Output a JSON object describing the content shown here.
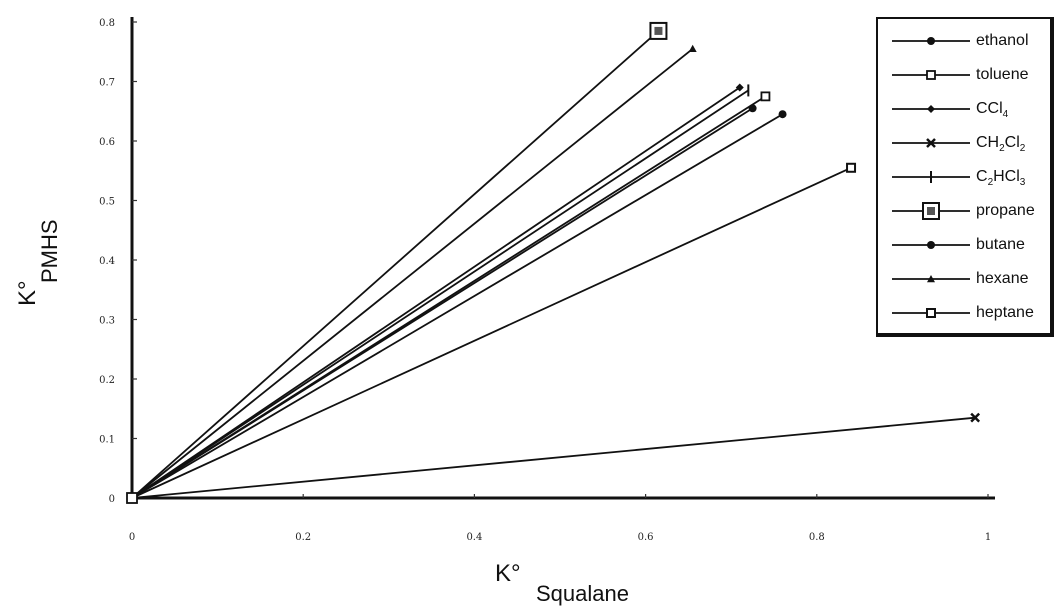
{
  "chart_data": {
    "type": "line",
    "xlabel_main": "K°",
    "xlabel_sub": "Squalane",
    "ylabel_main": "K°",
    "ylabel_sub": "PMHS",
    "xlim": [
      0,
      1
    ],
    "ylim": [
      0,
      0.8
    ],
    "x_ticks": [
      "0",
      "0.2",
      "0.4",
      "0.6",
      "0.8",
      "1"
    ],
    "y_ticks": [
      "0",
      "0.1",
      "0.2",
      "0.3",
      "0.4",
      "0.5",
      "0.6",
      "0.7",
      "0.8"
    ],
    "legend_position": "top-right",
    "series": [
      {
        "name": "ethanol",
        "label_main": "ethanol",
        "marker": "circle",
        "x": [
          0,
          0.725
        ],
        "y": [
          0,
          0.655
        ]
      },
      {
        "name": "toluene",
        "label_main": "toluene",
        "marker": "open-square",
        "x": [
          0,
          0.74
        ],
        "y": [
          0,
          0.675
        ]
      },
      {
        "name": "CCl4",
        "label_main": "CCl",
        "label_sub": "4",
        "marker": "diamond",
        "x": [
          0,
          0.71
        ],
        "y": [
          0,
          0.69
        ]
      },
      {
        "name": "CH2Cl2",
        "label_parts": [
          [
            "CH",
            ""
          ],
          [
            "2",
            "sub"
          ],
          [
            "Cl",
            ""
          ],
          [
            "2",
            "sub"
          ]
        ],
        "marker": "x",
        "x": [
          0,
          0.985
        ],
        "y": [
          0,
          0.135
        ]
      },
      {
        "name": "C2HCl3",
        "label_parts": [
          [
            "C",
            ""
          ],
          [
            "2",
            "sub"
          ],
          [
            "HCl",
            ""
          ],
          [
            "3",
            "sub"
          ]
        ],
        "marker": "plus",
        "x": [
          0,
          0.72
        ],
        "y": [
          0,
          0.685
        ]
      },
      {
        "name": "propane",
        "label_main": "propane",
        "marker": "boxed-square",
        "x": [
          0,
          0.615
        ],
        "y": [
          0,
          0.785
        ]
      },
      {
        "name": "butane",
        "label_main": "butane",
        "marker": "circle",
        "x": [
          0,
          0.76
        ],
        "y": [
          0,
          0.645
        ]
      },
      {
        "name": "hexane",
        "label_main": "hexane",
        "marker": "triangle",
        "x": [
          0,
          0.655
        ],
        "y": [
          0,
          0.755
        ]
      },
      {
        "name": "heptane",
        "label_main": "heptane",
        "marker": "small-square",
        "x": [
          0,
          0.84
        ],
        "y": [
          0,
          0.555
        ]
      }
    ]
  }
}
